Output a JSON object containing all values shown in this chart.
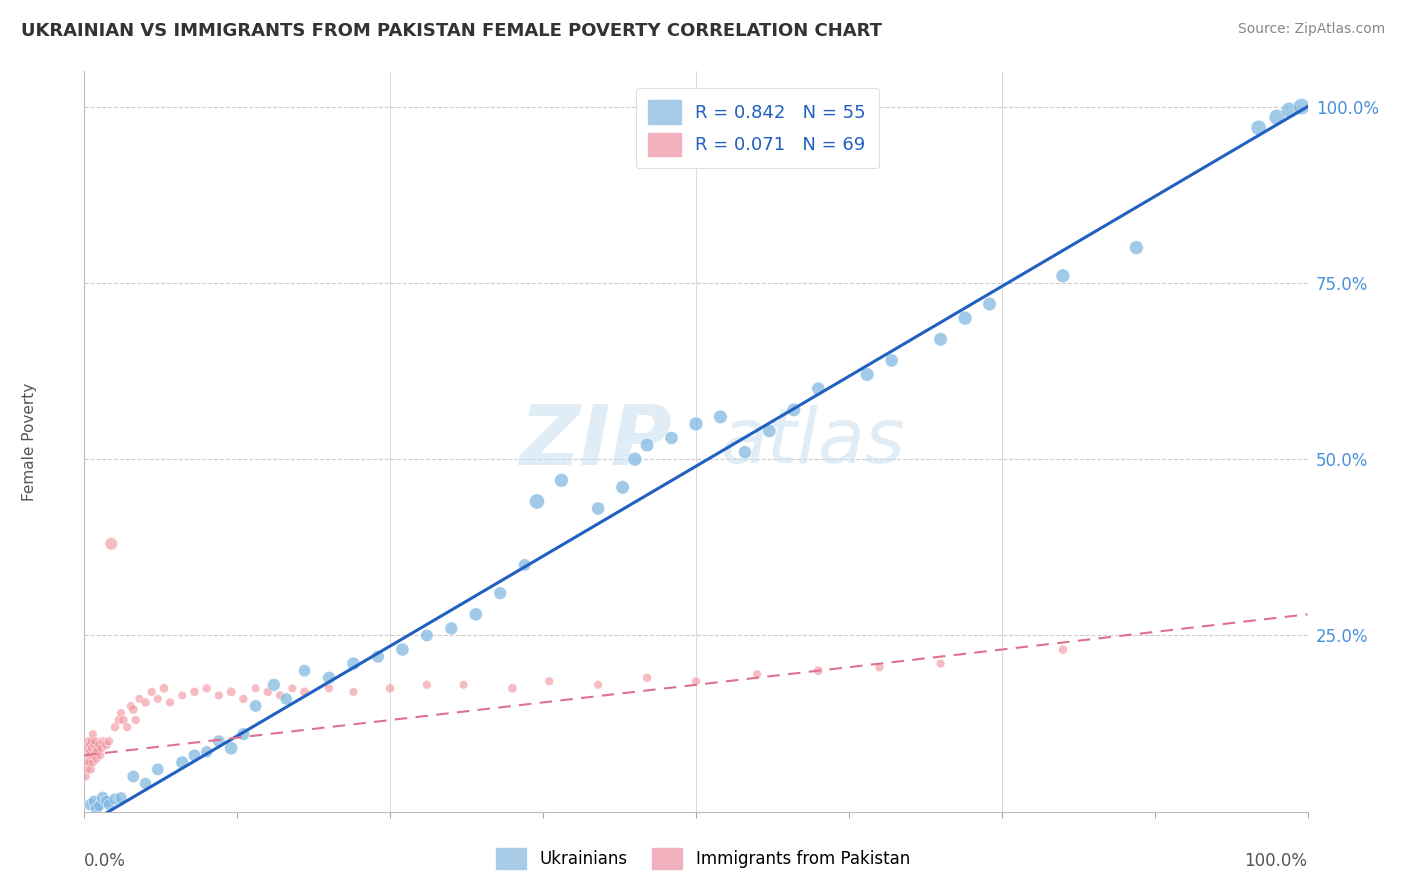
{
  "title": "UKRAINIAN VS IMMIGRANTS FROM PAKISTAN FEMALE POVERTY CORRELATION CHART",
  "source": "Source: ZipAtlas.com",
  "ylabel": "Female Poverty",
  "yticklabels": [
    "25.0%",
    "50.0%",
    "75.0%",
    "100.0%"
  ],
  "ytick_positions": [
    0.25,
    0.5,
    0.75,
    1.0
  ],
  "legend_bottom": [
    "Ukrainians",
    "Immigrants from Pakistan"
  ],
  "blue_color": "#7ab4e0",
  "blue_color_edge": "#7ab4e0",
  "pink_color": "#f0909a",
  "blue_line_color": "#2060c0",
  "pink_line_color": "#e07090",
  "watermark_color": "#d8eaf8",
  "blue_R": 0.842,
  "blue_N": 55,
  "pink_R": 0.071,
  "pink_N": 69,
  "figsize": [
    14.06,
    8.92
  ],
  "dpi": 100,
  "blue_x": [
    0.005,
    0.008,
    0.01,
    0.012,
    0.015,
    0.018,
    0.02,
    0.025,
    0.03,
    0.04,
    0.05,
    0.06,
    0.08,
    0.09,
    0.1,
    0.11,
    0.12,
    0.13,
    0.14,
    0.155,
    0.165,
    0.18,
    0.2,
    0.22,
    0.24,
    0.26,
    0.28,
    0.3,
    0.32,
    0.34,
    0.36,
    0.37,
    0.39,
    0.42,
    0.44,
    0.45,
    0.46,
    0.48,
    0.5,
    0.52,
    0.54,
    0.56,
    0.58,
    0.6,
    0.64,
    0.66,
    0.7,
    0.72,
    0.74,
    0.8,
    0.86,
    0.96,
    0.975,
    0.985,
    0.995
  ],
  "blue_y": [
    0.01,
    0.015,
    0.005,
    0.008,
    0.02,
    0.015,
    0.01,
    0.018,
    0.02,
    0.05,
    0.04,
    0.06,
    0.07,
    0.08,
    0.085,
    0.1,
    0.09,
    0.11,
    0.15,
    0.18,
    0.16,
    0.2,
    0.19,
    0.21,
    0.22,
    0.23,
    0.25,
    0.26,
    0.28,
    0.31,
    0.35,
    0.44,
    0.47,
    0.43,
    0.46,
    0.5,
    0.52,
    0.53,
    0.55,
    0.56,
    0.51,
    0.54,
    0.57,
    0.6,
    0.62,
    0.64,
    0.67,
    0.7,
    0.72,
    0.76,
    0.8,
    0.97,
    0.985,
    0.995,
    1.0
  ],
  "blue_sizes": [
    80,
    70,
    75,
    60,
    80,
    70,
    65,
    75,
    70,
    80,
    75,
    80,
    85,
    80,
    75,
    80,
    90,
    85,
    80,
    85,
    75,
    80,
    85,
    90,
    85,
    90,
    80,
    85,
    90,
    85,
    80,
    120,
    100,
    90,
    95,
    100,
    95,
    90,
    100,
    95,
    85,
    90,
    95,
    90,
    95,
    90,
    95,
    100,
    95,
    100,
    100,
    120,
    130,
    130,
    140
  ],
  "pink_x": [
    0.001,
    0.002,
    0.002,
    0.003,
    0.003,
    0.003,
    0.004,
    0.004,
    0.004,
    0.005,
    0.005,
    0.006,
    0.006,
    0.007,
    0.007,
    0.008,
    0.008,
    0.009,
    0.009,
    0.01,
    0.01,
    0.011,
    0.012,
    0.013,
    0.014,
    0.015,
    0.018,
    0.02,
    0.022,
    0.025,
    0.028,
    0.03,
    0.032,
    0.035,
    0.038,
    0.04,
    0.042,
    0.045,
    0.05,
    0.055,
    0.06,
    0.065,
    0.07,
    0.08,
    0.09,
    0.1,
    0.11,
    0.12,
    0.13,
    0.14,
    0.15,
    0.16,
    0.17,
    0.18,
    0.2,
    0.22,
    0.25,
    0.28,
    0.31,
    0.35,
    0.38,
    0.42,
    0.46,
    0.5,
    0.55,
    0.6,
    0.65,
    0.7,
    0.8
  ],
  "pink_y": [
    0.05,
    0.06,
    0.07,
    0.08,
    0.09,
    0.1,
    0.07,
    0.085,
    0.095,
    0.06,
    0.08,
    0.09,
    0.1,
    0.07,
    0.11,
    0.08,
    0.095,
    0.085,
    0.1,
    0.09,
    0.075,
    0.085,
    0.095,
    0.08,
    0.09,
    0.1,
    0.095,
    0.1,
    0.38,
    0.12,
    0.13,
    0.14,
    0.13,
    0.12,
    0.15,
    0.145,
    0.13,
    0.16,
    0.155,
    0.17,
    0.16,
    0.175,
    0.155,
    0.165,
    0.17,
    0.175,
    0.165,
    0.17,
    0.16,
    0.175,
    0.17,
    0.165,
    0.175,
    0.17,
    0.175,
    0.17,
    0.175,
    0.18,
    0.18,
    0.175,
    0.185,
    0.18,
    0.19,
    0.185,
    0.195,
    0.2,
    0.205,
    0.21,
    0.23
  ],
  "pink_sizes": [
    40,
    38,
    42,
    40,
    45,
    38,
    42,
    40,
    38,
    45,
    40,
    38,
    42,
    40,
    38,
    45,
    40,
    38,
    42,
    40,
    38,
    45,
    40,
    38,
    42,
    40,
    45,
    42,
    80,
    42,
    40,
    38,
    42,
    40,
    38,
    45,
    40,
    38,
    42,
    40,
    38,
    45,
    40,
    38,
    42,
    40,
    38,
    45,
    40,
    38,
    42,
    40,
    38,
    45,
    40,
    38,
    42,
    40,
    38,
    45,
    40,
    38,
    42,
    40,
    38,
    45,
    40,
    38,
    42
  ]
}
